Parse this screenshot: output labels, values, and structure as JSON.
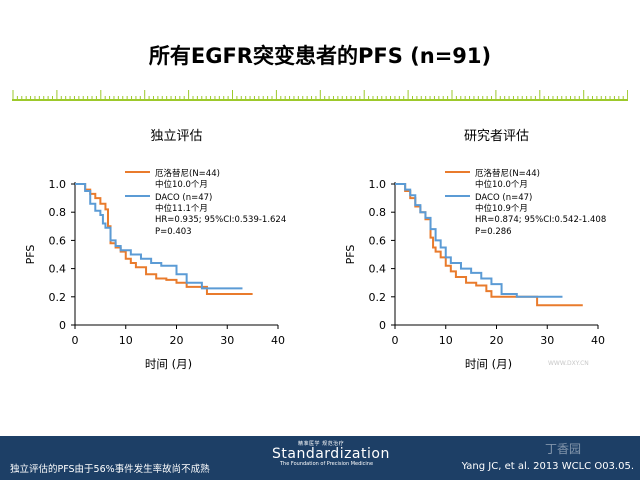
{
  "title": "所有EGFR突变患者的PFS (n=91)",
  "colors": {
    "erlotinib": "#e97b2c",
    "dacomitinib": "#5b9bd5",
    "footer": "#1d3f66",
    "ruler": "#9dc92b"
  },
  "chart_data": [
    {
      "type": "line",
      "title": "独立评估",
      "xlabel": "时间 (月)",
      "ylabel": "PFS",
      "xlim": [
        0,
        40
      ],
      "ylim": [
        0,
        1.0
      ],
      "xticks": [
        "0",
        "10",
        "20",
        "30",
        "40"
      ],
      "yticks": [
        "0",
        "0.2",
        "0.4",
        "0.6",
        "0.8",
        "1.0"
      ],
      "legend_text": [
        "中位10.0个月",
        "中位11.1个月",
        "HR=0.935; 95%CI:0.539-1.624",
        "P=0.403"
      ],
      "series": [
        {
          "name": "厄洛替尼(N=44)",
          "color": "#e97b2c",
          "x": [
            0,
            1.5,
            2,
            3,
            4,
            5,
            6,
            6.5,
            7,
            8,
            9,
            10,
            11,
            12,
            14,
            16,
            18,
            20,
            22,
            25,
            26,
            35
          ],
          "y": [
            1.0,
            1.0,
            0.96,
            0.93,
            0.9,
            0.86,
            0.82,
            0.7,
            0.58,
            0.55,
            0.52,
            0.47,
            0.44,
            0.41,
            0.36,
            0.33,
            0.32,
            0.3,
            0.27,
            0.27,
            0.22,
            0.22
          ]
        },
        {
          "name": "DACO (n=47)",
          "color": "#5b9bd5",
          "x": [
            0,
            1,
            2,
            3,
            4,
            5,
            5.5,
            6,
            7,
            8,
            9,
            11,
            13,
            15,
            17,
            20,
            22,
            25,
            33
          ],
          "y": [
            1.0,
            1.0,
            0.95,
            0.86,
            0.81,
            0.78,
            0.72,
            0.69,
            0.6,
            0.56,
            0.53,
            0.5,
            0.47,
            0.44,
            0.42,
            0.36,
            0.3,
            0.26,
            0.26
          ]
        }
      ]
    },
    {
      "type": "line",
      "title": "研究者评估",
      "xlabel": "时间 (月)",
      "ylabel": "PFS",
      "xlim": [
        0,
        40
      ],
      "ylim": [
        0,
        1.0
      ],
      "xticks": [
        "0",
        "10",
        "20",
        "30",
        "40"
      ],
      "yticks": [
        "0",
        "0.2",
        "0.4",
        "0.6",
        "0.8",
        "1.0"
      ],
      "legend_text": [
        "中位10.0个月",
        "中位10.9个月",
        "HR=0.874; 95%CI:0.542-1.408",
        "P=0.286"
      ],
      "series": [
        {
          "name": "厄洛替尼(N=44)",
          "color": "#e97b2c",
          "x": [
            0,
            1.5,
            2,
            3,
            4,
            5,
            6,
            7,
            7.5,
            8,
            9,
            10,
            11,
            12,
            14,
            16,
            18,
            19,
            22,
            28,
            37
          ],
          "y": [
            1.0,
            1.0,
            0.95,
            0.9,
            0.84,
            0.8,
            0.75,
            0.62,
            0.55,
            0.52,
            0.48,
            0.42,
            0.38,
            0.34,
            0.3,
            0.28,
            0.24,
            0.2,
            0.2,
            0.14,
            0.14
          ]
        },
        {
          "name": "DACO (n=47)",
          "color": "#5b9bd5",
          "x": [
            0,
            1,
            2,
            3,
            4,
            5,
            6,
            7,
            8,
            9,
            10,
            11,
            13,
            15,
            17,
            19,
            21,
            24,
            33
          ],
          "y": [
            1.0,
            1.0,
            0.96,
            0.92,
            0.85,
            0.8,
            0.76,
            0.68,
            0.6,
            0.55,
            0.48,
            0.44,
            0.4,
            0.37,
            0.33,
            0.29,
            0.22,
            0.2,
            0.2
          ]
        }
      ]
    }
  ],
  "footer": {
    "note": "独立评估的PFS由于56%事件发生率故尚不成熟",
    "citation": "Yang JC, et al. 2013 WCLC O03.05.",
    "logo_cn": "精准医学 规范治疗",
    "logo_main": "Standardization",
    "logo_sub": "The Foundation of Precision Medicine",
    "watermark": "丁香园",
    "watermark_url": "WWW.DXY.CN"
  }
}
